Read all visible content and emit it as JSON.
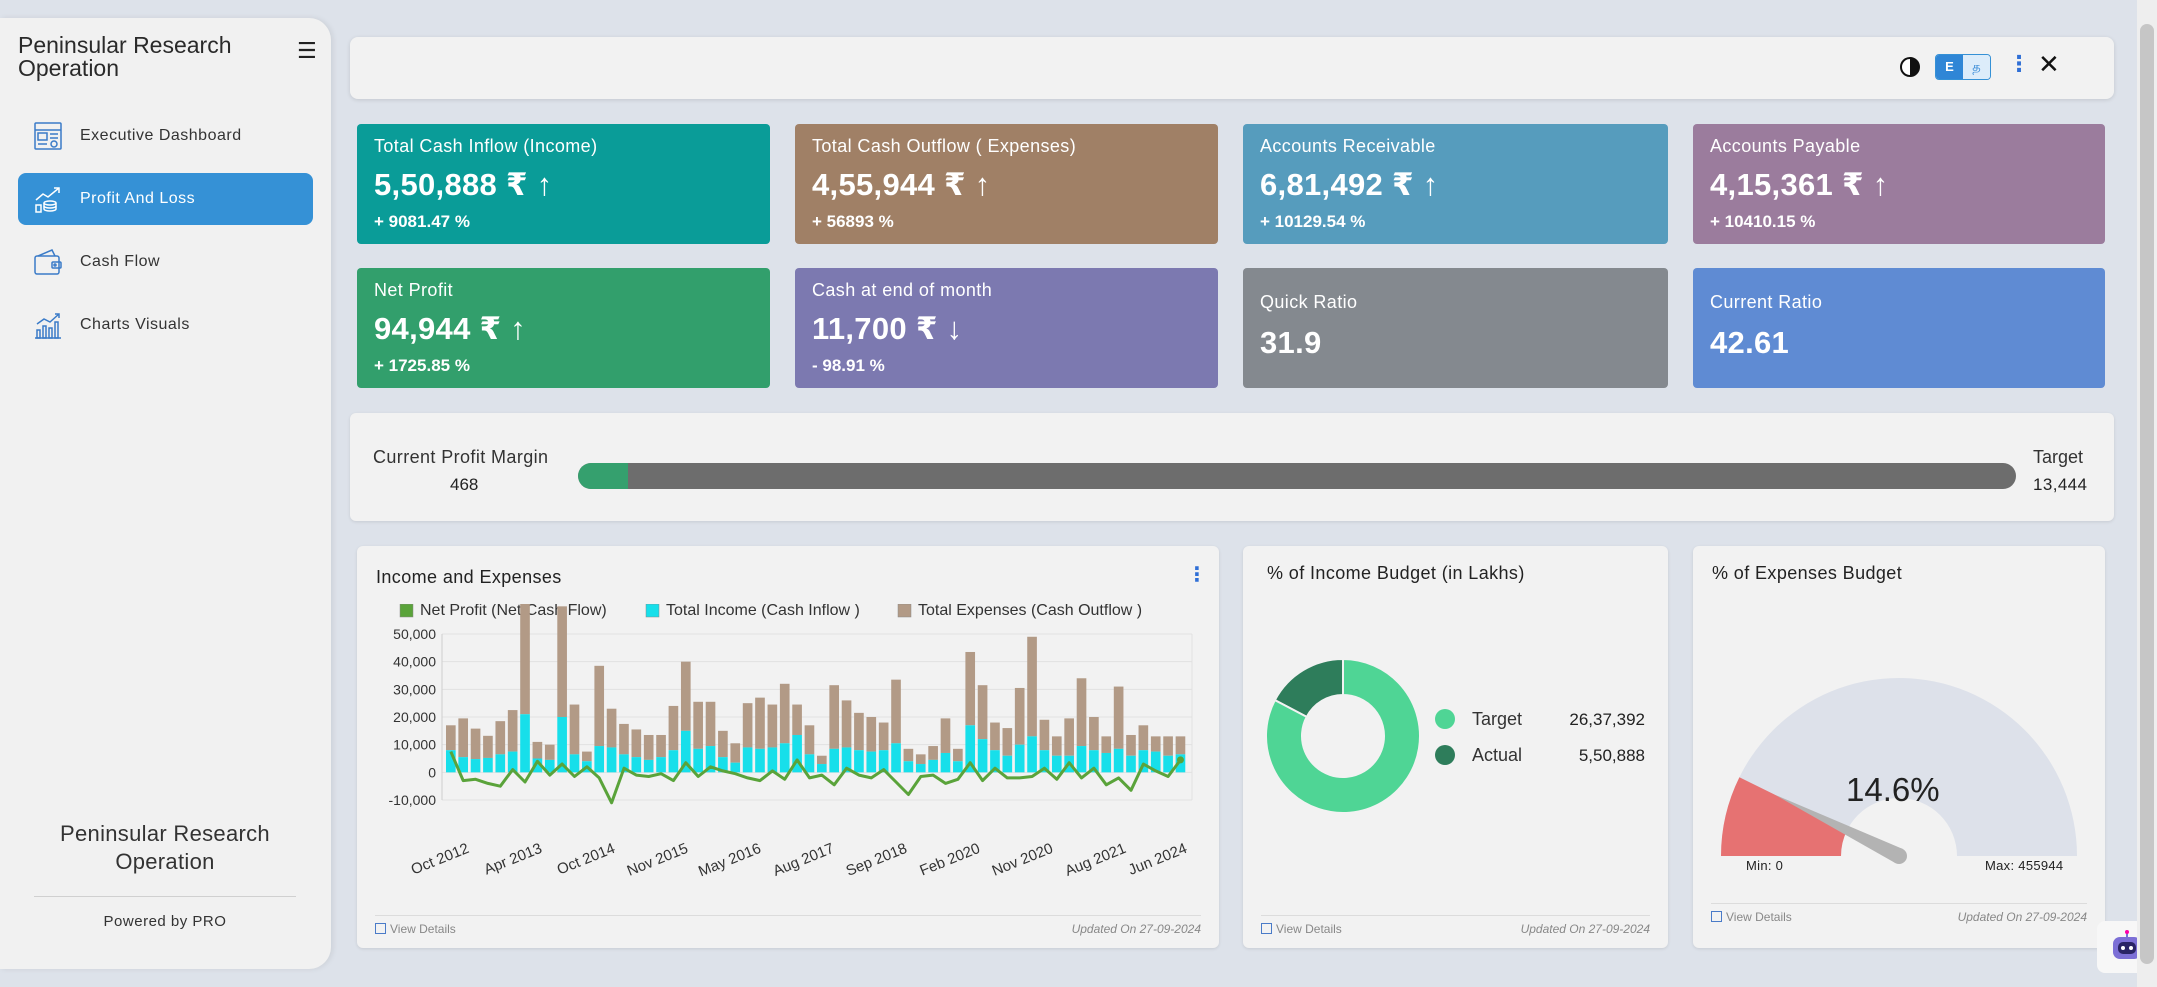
{
  "sidebar": {
    "brand": "Peninsular Research Operation",
    "items": [
      {
        "label": "Executive Dashboard",
        "icon": "dashboard-icon"
      },
      {
        "label": "Profit And Loss",
        "icon": "profit-loss-icon",
        "active": true
      },
      {
        "label": "Cash Flow",
        "icon": "wallet-icon"
      },
      {
        "label": "Charts Visuals",
        "icon": "bar-chart-icon"
      }
    ],
    "footer_org": "Peninsular Research Operation",
    "powered_by": "Powered by PRO"
  },
  "topbar": {
    "lang_1": "E",
    "lang_2": "த",
    "close": "✕"
  },
  "kpis": [
    {
      "title": "Total Cash Inflow (Income)",
      "value": "5,50,888 ₹ ↑",
      "pct": "+ 9081.47 %",
      "color": "#0a9c98"
    },
    {
      "title": "Total Cash Outflow ( Expenses)",
      "value": "4,55,944 ₹ ↑",
      "pct": "+ 56893 %",
      "color": "#a08066"
    },
    {
      "title": "Accounts Receivable",
      "value": "6,81,492 ₹ ↑",
      "pct": "+ 10129.54 %",
      "color": "#569cbd"
    },
    {
      "title": "Accounts Payable",
      "value": "4,15,361 ₹ ↑",
      "pct": "+ 10410.15 %",
      "color": "#9b7c9d"
    },
    {
      "title": "Net Profit",
      "value": "94,944 ₹ ↑",
      "pct": "+ 1725.85 %",
      "color": "#329f6c"
    },
    {
      "title": "Cash at end of month",
      "value": "11,700 ₹ ↓",
      "pct": "- 98.91 %",
      "color": "#7c79b0"
    },
    {
      "title": "Quick Ratio",
      "value": "31.9",
      "color": "#84898f"
    },
    {
      "title": "Current Ratio",
      "value": "42.61",
      "color": "#5f8bd3"
    }
  ],
  "profit_margin": {
    "label": "Current Profit Margin",
    "value": "468",
    "target_label": "Target",
    "target_value": "13,444",
    "fraction": 0.0348
  },
  "income_expenses": {
    "title": "Income and Expenses",
    "view_details": "View Details",
    "updated": "Updated On 27-09-2024"
  },
  "income_budget": {
    "title": "% of Income Budget (in Lakhs)",
    "view_details": "View Details",
    "updated": "Updated On 27-09-2024"
  },
  "expenses_budget": {
    "title": "% of Expenses Budget",
    "percent_label": "14.6%",
    "min_label": "Min: 0",
    "max_label": "Max: 455944",
    "view_details": "View Details",
    "updated": "Updated On 27-09-2024"
  },
  "chart_data": [
    {
      "type": "bar",
      "title": "Income and Expenses",
      "legend": [
        "Net Profit (Net Cash Flow)",
        "Total Income (Cash Inflow )",
        "Total Expenses (Cash Outflow )"
      ],
      "colors": {
        "net_profit": "#5aa33a",
        "income": "#17dfea",
        "expenses": "#b29a86"
      },
      "ylim": [
        -10000,
        50000
      ],
      "yticks": [
        "50,000",
        "40,000",
        "30,000",
        "20,000",
        "10,000",
        "0",
        "-10,000"
      ],
      "xticks": [
        "Oct 2012",
        "Apr 2013",
        "Oct 2014",
        "Nov 2015",
        "May 2016",
        "Aug 2017",
        "Sep 2018",
        "Feb 2020",
        "Nov 2020",
        "Aug 2021",
        "Jun 2024"
      ],
      "series": [
        {
          "name": "Total Income (Cash Inflow )",
          "values": [
            8000,
            5500,
            4800,
            5200,
            6500,
            7500,
            21000,
            5000,
            4500,
            20000,
            6500,
            4000,
            9500,
            9000,
            6500,
            5500,
            4500,
            5500,
            8000,
            15000,
            8500,
            9500,
            5500,
            3500,
            9000,
            8500,
            9000,
            10500,
            13500,
            6500,
            3000,
            8500,
            9000,
            8000,
            7500,
            8000,
            10500,
            4000,
            3000,
            4500,
            7000,
            4000,
            17000,
            12000,
            8000,
            6000,
            10000,
            13000,
            8000,
            6000,
            6000,
            9500,
            8000,
            7000,
            8500,
            6000,
            8000,
            7500,
            6000,
            6500
          ]
        },
        {
          "name": "Total Expenses (Cash Outflow )",
          "values": [
            9000,
            14000,
            11000,
            8000,
            12000,
            15000,
            43000,
            6000,
            5500,
            40000,
            18000,
            3500,
            29000,
            14000,
            11000,
            10000,
            9000,
            8000,
            16000,
            25000,
            17000,
            16000,
            9500,
            7000,
            16000,
            18500,
            15500,
            21500,
            11000,
            10500,
            3000,
            23000,
            17000,
            13500,
            12500,
            10000,
            23000,
            4500,
            3500,
            5000,
            12500,
            4500,
            26500,
            19500,
            10000,
            10000,
            20500,
            36000,
            11000,
            7000,
            13500,
            24500,
            12000,
            6000,
            22500,
            7500,
            9000,
            5500,
            7000,
            6500
          ]
        },
        {
          "name": "Net Profit (Net Cash Flow)",
          "values": [
            7500,
            -3000,
            -2500,
            -4000,
            -5000,
            1000,
            -3500,
            4000,
            -1000,
            3000,
            -1500,
            2000,
            -2000,
            -11000,
            1500,
            -1000,
            -1500,
            -500,
            -3000,
            3500,
            -1500,
            2000,
            500,
            -500,
            -2000,
            -3000,
            500,
            -2500,
            4500,
            -2000,
            -1000,
            -4500,
            1500,
            -1000,
            -2000,
            1000,
            -3500,
            -8000,
            -1500,
            -1000,
            -4000,
            -2500,
            3500,
            -3000,
            1500,
            -2000,
            -2000,
            -1500,
            1500,
            -2500,
            3500,
            -2000,
            1500,
            -4500,
            -2000,
            -6500,
            3000,
            500,
            -1500,
            4500
          ]
        }
      ]
    },
    {
      "type": "pie",
      "title": "% of Income Budget (in Lakhs)",
      "labels": [
        "Target",
        "Actual"
      ],
      "values": [
        2637392,
        550888
      ],
      "value_labels": [
        "26,37,392",
        "5,50,888"
      ],
      "colors": [
        "#4fd595",
        "#2e7d5b"
      ]
    },
    {
      "type": "gauge",
      "title": "% of Expenses Budget",
      "value_percent": 14.6,
      "min": 0,
      "max": 455944,
      "colors": {
        "filled": "#e67272",
        "track": "#dde1ea",
        "needle": "#b3b3b3"
      }
    }
  ]
}
